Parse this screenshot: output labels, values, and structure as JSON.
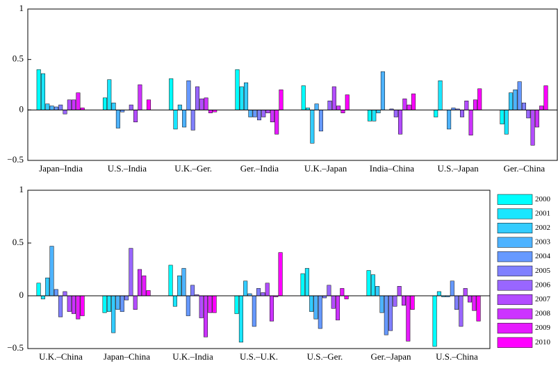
{
  "chart_data": [
    {
      "type": "bar",
      "categories": [
        "Japan–India",
        "U.S.–India",
        "U.K.–Ger.",
        "Ger.–India",
        "U.K.–Japan",
        "India–China",
        "U.S.–Japan",
        "Ger.–China"
      ],
      "series": [
        {
          "color": "#00ffff",
          "values": [
            0.4,
            0.12,
            0.31,
            0.4,
            0.24,
            -0.11,
            -0.07,
            -0.14
          ]
        },
        {
          "color": "#1ae6ff",
          "values": [
            0.36,
            0.3,
            -0.19,
            0.23,
            0.02,
            -0.11,
            0.29,
            -0.24
          ]
        },
        {
          "color": "#33ccff",
          "values": [
            0.06,
            0.07,
            0.05,
            0.27,
            -0.33,
            -0.03,
            0.0,
            0.17
          ]
        },
        {
          "color": "#4db3ff",
          "values": [
            0.04,
            -0.18,
            -0.17,
            -0.07,
            0.06,
            0.38,
            -0.19,
            0.2
          ]
        },
        {
          "color": "#6699ff",
          "values": [
            0.03,
            -0.02,
            0.29,
            -0.07,
            -0.21,
            0.0,
            0.02,
            0.28
          ]
        },
        {
          "color": "#8080ff",
          "values": [
            0.05,
            0.0,
            -0.2,
            -0.1,
            0.0,
            0.01,
            0.01,
            0.07
          ]
        },
        {
          "color": "#9966ff",
          "values": [
            -0.04,
            0.05,
            0.23,
            -0.07,
            0.09,
            -0.07,
            -0.07,
            -0.08
          ]
        },
        {
          "color": "#b34dff",
          "values": [
            0.1,
            -0.12,
            0.11,
            -0.03,
            0.23,
            -0.24,
            0.09,
            -0.35
          ]
        },
        {
          "color": "#cc33ff",
          "values": [
            0.1,
            0.25,
            0.12,
            -0.12,
            0.04,
            0.11,
            -0.25,
            -0.17
          ]
        },
        {
          "color": "#e61aff",
          "values": [
            0.17,
            0.0,
            -0.03,
            -0.24,
            -0.03,
            0.05,
            0.1,
            0.04
          ]
        },
        {
          "color": "#ff00ff",
          "values": [
            0.02,
            0.1,
            -0.02,
            0.2,
            0.15,
            0.16,
            0.21,
            0.24
          ]
        }
      ],
      "ylim": [
        -0.5,
        1
      ],
      "yticks": [
        {
          "value": -0.5,
          "label": "−0.5"
        },
        0,
        0.5,
        1
      ]
    },
    {
      "type": "bar",
      "categories": [
        "U.K.–China",
        "Japan–China",
        "U.K.–India",
        "U.S.–U.K.",
        "U.S.–Ger.",
        "Ger.–Japan",
        "U.S.–China"
      ],
      "series": [
        {
          "name": "2000",
          "color": "#00ffff",
          "values": [
            0.12,
            -0.16,
            0.29,
            -0.17,
            0.21,
            0.24,
            -0.48
          ]
        },
        {
          "name": "2001",
          "color": "#1ae6ff",
          "values": [
            -0.03,
            -0.15,
            -0.1,
            -0.44,
            0.26,
            0.2,
            0.04
          ]
        },
        {
          "name": "2002",
          "color": "#33ccff",
          "values": [
            0.17,
            -0.35,
            0.19,
            0.14,
            -0.15,
            0.09,
            -0.01
          ]
        },
        {
          "name": "2003",
          "color": "#4db3ff",
          "values": [
            0.47,
            -0.13,
            0.26,
            0.02,
            -0.22,
            -0.16,
            -0.01
          ]
        },
        {
          "name": "2004",
          "color": "#6699ff",
          "values": [
            0.06,
            -0.15,
            -0.19,
            -0.29,
            -0.31,
            -0.37,
            0.14
          ]
        },
        {
          "name": "2005",
          "color": "#8080ff",
          "values": [
            -0.2,
            -0.04,
            0.1,
            0.07,
            -0.02,
            -0.33,
            -0.13
          ]
        },
        {
          "name": "2006",
          "color": "#9966ff",
          "values": [
            0.04,
            0.45,
            0.01,
            0.03,
            0.1,
            -0.1,
            -0.29
          ]
        },
        {
          "name": "2007",
          "color": "#b34dff",
          "values": [
            -0.15,
            -0.13,
            -0.21,
            0.12,
            -0.12,
            0.09,
            0.07
          ]
        },
        {
          "name": "2008",
          "color": "#cc33ff",
          "values": [
            -0.17,
            0.25,
            -0.39,
            -0.24,
            -0.23,
            -0.09,
            -0.06
          ]
        },
        {
          "name": "2009",
          "color": "#e61aff",
          "values": [
            -0.22,
            0.19,
            -0.16,
            -0.01,
            0.07,
            -0.43,
            -0.14
          ]
        },
        {
          "name": "2010",
          "color": "#ff00ff",
          "values": [
            -0.19,
            0.05,
            -0.16,
            0.41,
            -0.03,
            -0.13,
            -0.24
          ]
        }
      ],
      "ylim": [
        -0.5,
        1
      ],
      "yticks": [
        {
          "value": -0.5,
          "label": "−0.5"
        },
        0,
        0.5,
        1
      ],
      "legend": "right"
    }
  ]
}
